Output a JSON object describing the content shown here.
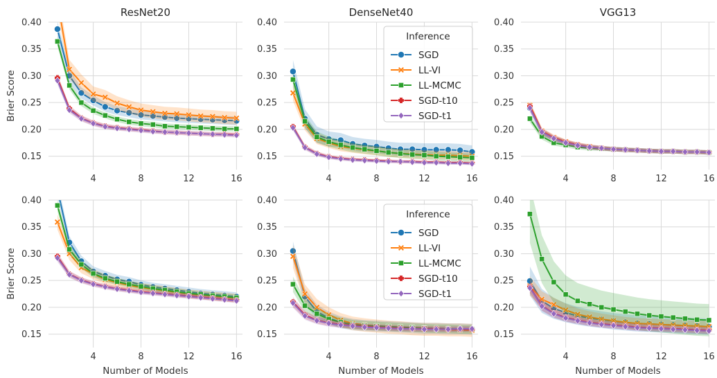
{
  "figure": {
    "column_titles": [
      "ResNet20",
      "DenseNet40",
      "VGG13"
    ],
    "ylabel": "Brier Score",
    "xlabel": "Number of Models",
    "legend_title": "Inference"
  },
  "series_styles": [
    {
      "name": "SGD",
      "color": "#1f77b4",
      "marker": "circle"
    },
    {
      "name": "LL-VI",
      "color": "#ff7f0e",
      "marker": "x"
    },
    {
      "name": "LL-MCMC",
      "color": "#2ca02c",
      "marker": "square"
    },
    {
      "name": "SGD-t10",
      "color": "#d62728",
      "marker": "plus"
    },
    {
      "name": "SGD-t1",
      "color": "#9467bd",
      "marker": "diamond"
    }
  ],
  "chart_data": [
    {
      "type": "line",
      "title": "ResNet20",
      "ylabel": "Brier Score",
      "xlabel": "",
      "xlim": [
        0.25,
        16.5
      ],
      "ylim": [
        0.125,
        0.4
      ],
      "xticks": [
        "4",
        "8",
        "12",
        "16"
      ],
      "yticks": [
        "0.15",
        "0.20",
        "0.25",
        "0.30",
        "0.35",
        "0.40"
      ],
      "grid": true,
      "legend": null,
      "x": [
        1,
        2,
        3,
        4,
        5,
        6,
        7,
        8,
        9,
        10,
        11,
        12,
        13,
        14,
        15,
        16
      ],
      "series": [
        {
          "name": "SGD",
          "values": [
            0.387,
            0.3,
            0.268,
            0.254,
            0.242,
            0.235,
            0.231,
            0.227,
            0.225,
            0.223,
            0.221,
            0.22,
            0.219,
            0.218,
            0.217,
            0.216
          ],
          "band": 0.008
        },
        {
          "name": "LL-VI",
          "values": [
            0.44,
            0.312,
            0.287,
            0.266,
            0.26,
            0.249,
            0.242,
            0.236,
            0.233,
            0.23,
            0.229,
            0.227,
            0.225,
            0.224,
            0.222,
            0.221
          ],
          "band": 0.012
        },
        {
          "name": "LL-MCMC",
          "values": [
            0.364,
            0.282,
            0.25,
            0.235,
            0.226,
            0.219,
            0.214,
            0.211,
            0.209,
            0.206,
            0.205,
            0.204,
            0.203,
            0.202,
            0.201,
            0.201
          ],
          "band": 0.005
        },
        {
          "name": "SGD-t10",
          "values": [
            0.296,
            0.239,
            0.221,
            0.212,
            0.206,
            0.203,
            0.201,
            0.199,
            0.197,
            0.195,
            0.194,
            0.193,
            0.192,
            0.191,
            0.191,
            0.19
          ],
          "band": 0.004
        },
        {
          "name": "SGD-t1",
          "values": [
            0.291,
            0.236,
            0.22,
            0.211,
            0.205,
            0.202,
            0.2,
            0.198,
            0.196,
            0.195,
            0.194,
            0.193,
            0.192,
            0.191,
            0.19,
            0.189
          ],
          "band": 0.004
        }
      ]
    },
    {
      "type": "line",
      "title": "DenseNet40",
      "ylabel": "",
      "xlabel": "",
      "xlim": [
        0.25,
        16.5
      ],
      "ylim": [
        0.125,
        0.4
      ],
      "xticks": [
        "4",
        "8",
        "12",
        "16"
      ],
      "yticks": [
        "0.15",
        "0.20",
        "0.25",
        "0.30",
        "0.35",
        "0.40"
      ],
      "grid": true,
      "legend": "top-right",
      "x": [
        1,
        2,
        3,
        4,
        5,
        6,
        7,
        8,
        9,
        10,
        11,
        12,
        13,
        14,
        15,
        16
      ],
      "series": [
        {
          "name": "SGD",
          "values": [
            0.308,
            0.22,
            0.19,
            0.182,
            0.18,
            0.173,
            0.17,
            0.168,
            0.165,
            0.163,
            0.163,
            0.162,
            0.162,
            0.162,
            0.161,
            0.158
          ],
          "band": 0.012
        },
        {
          "name": "LL-VI",
          "values": [
            0.268,
            0.21,
            0.183,
            0.175,
            0.168,
            0.165,
            0.162,
            0.16,
            0.157,
            0.155,
            0.154,
            0.153,
            0.152,
            0.152,
            0.151,
            0.15
          ],
          "band": 0.008
        },
        {
          "name": "LL-MCMC",
          "values": [
            0.293,
            0.215,
            0.186,
            0.177,
            0.171,
            0.166,
            0.163,
            0.16,
            0.157,
            0.155,
            0.153,
            0.152,
            0.15,
            0.149,
            0.148,
            0.147
          ],
          "band": 0.008
        },
        {
          "name": "SGD-t10",
          "values": [
            0.205,
            0.167,
            0.155,
            0.149,
            0.146,
            0.144,
            0.143,
            0.142,
            0.141,
            0.14,
            0.14,
            0.139,
            0.139,
            0.138,
            0.138,
            0.137
          ],
          "band": 0.003
        },
        {
          "name": "SGD-t1",
          "values": [
            0.203,
            0.166,
            0.154,
            0.148,
            0.145,
            0.143,
            0.142,
            0.141,
            0.14,
            0.14,
            0.139,
            0.138,
            0.138,
            0.137,
            0.137,
            0.136
          ],
          "band": 0.003
        }
      ]
    },
    {
      "type": "line",
      "title": "VGG13",
      "ylabel": "",
      "xlabel": "",
      "xlim": [
        0.25,
        16.5
      ],
      "ylim": [
        0.125,
        0.4
      ],
      "xticks": [
        "4",
        "8",
        "12",
        "16"
      ],
      "yticks": [
        "0.15",
        "0.20",
        "0.25",
        "0.30",
        "0.35",
        "0.40"
      ],
      "grid": true,
      "legend": null,
      "x": [
        1,
        2,
        3,
        4,
        5,
        6,
        7,
        8,
        9,
        10,
        11,
        12,
        13,
        14,
        15,
        16
      ],
      "series": [
        {
          "name": "SGD",
          "values": [
            0.24,
            0.195,
            0.183,
            0.176,
            0.17,
            0.167,
            0.165,
            0.163,
            0.162,
            0.161,
            0.16,
            0.159,
            0.159,
            0.158,
            0.158,
            0.157
          ],
          "band": 0.004
        },
        {
          "name": "LL-VI",
          "values": [
            0.245,
            0.197,
            0.185,
            0.177,
            0.171,
            0.168,
            0.165,
            0.163,
            0.162,
            0.161,
            0.16,
            0.159,
            0.159,
            0.158,
            0.158,
            0.157
          ],
          "band": 0.004
        },
        {
          "name": "LL-MCMC",
          "values": [
            0.22,
            0.187,
            0.175,
            0.171,
            0.167,
            0.165,
            0.164,
            0.163,
            0.162,
            0.161,
            0.16,
            0.159,
            0.159,
            0.158,
            0.158,
            0.157
          ],
          "band": 0.004
        },
        {
          "name": "SGD-t10",
          "values": [
            0.243,
            0.196,
            0.184,
            0.176,
            0.171,
            0.167,
            0.165,
            0.163,
            0.162,
            0.161,
            0.16,
            0.159,
            0.159,
            0.158,
            0.158,
            0.157
          ],
          "band": 0.004
        },
        {
          "name": "SGD-t1",
          "values": [
            0.24,
            0.195,
            0.183,
            0.175,
            0.17,
            0.167,
            0.165,
            0.163,
            0.162,
            0.161,
            0.16,
            0.159,
            0.159,
            0.158,
            0.158,
            0.157
          ],
          "band": 0.004
        }
      ]
    },
    {
      "type": "line",
      "title": "",
      "ylabel": "Brier Score",
      "xlabel": "Number of Models",
      "xlim": [
        0.25,
        16.5
      ],
      "ylim": [
        0.125,
        0.4
      ],
      "xticks": [
        "4",
        "8",
        "12",
        "16"
      ],
      "yticks": [
        "0.15",
        "0.20",
        "0.25",
        "0.30",
        "0.35",
        "0.40"
      ],
      "grid": true,
      "legend": null,
      "x": [
        1,
        2,
        3,
        4,
        5,
        6,
        7,
        8,
        9,
        10,
        11,
        12,
        13,
        14,
        15,
        16
      ],
      "series": [
        {
          "name": "SGD",
          "values": [
            0.42,
            0.321,
            0.286,
            0.267,
            0.259,
            0.252,
            0.248,
            0.242,
            0.238,
            0.235,
            0.232,
            0.229,
            0.226,
            0.224,
            0.222,
            0.22
          ],
          "band": 0.008
        },
        {
          "name": "LL-VI",
          "values": [
            0.359,
            0.3,
            0.274,
            0.262,
            0.252,
            0.246,
            0.241,
            0.237,
            0.234,
            0.231,
            0.228,
            0.225,
            0.223,
            0.221,
            0.219,
            0.217
          ],
          "band": 0.008
        },
        {
          "name": "LL-MCMC",
          "values": [
            0.39,
            0.308,
            0.28,
            0.263,
            0.254,
            0.248,
            0.243,
            0.239,
            0.235,
            0.232,
            0.229,
            0.226,
            0.224,
            0.222,
            0.22,
            0.218
          ],
          "band": 0.006
        },
        {
          "name": "SGD-t10",
          "values": [
            0.295,
            0.262,
            0.251,
            0.244,
            0.239,
            0.235,
            0.232,
            0.229,
            0.227,
            0.225,
            0.223,
            0.221,
            0.219,
            0.217,
            0.215,
            0.213
          ],
          "band": 0.004
        },
        {
          "name": "SGD-t1",
          "values": [
            0.292,
            0.261,
            0.25,
            0.243,
            0.238,
            0.234,
            0.231,
            0.228,
            0.226,
            0.224,
            0.222,
            0.22,
            0.218,
            0.216,
            0.214,
            0.212
          ],
          "band": 0.004
        }
      ]
    },
    {
      "type": "line",
      "title": "",
      "ylabel": "",
      "xlabel": "Number of Models",
      "xlim": [
        0.25,
        16.5
      ],
      "ylim": [
        0.125,
        0.4
      ],
      "xticks": [
        "4",
        "8",
        "12",
        "16"
      ],
      "yticks": [
        "0.15",
        "0.20",
        "0.25",
        "0.30",
        "0.35",
        "0.40"
      ],
      "grid": true,
      "legend": "top-right",
      "x": [
        1,
        2,
        3,
        4,
        5,
        6,
        7,
        8,
        9,
        10,
        11,
        12,
        13,
        14,
        15,
        16
      ],
      "series": [
        {
          "name": "SGD",
          "values": [
            0.305,
            0.22,
            0.192,
            0.18,
            0.172,
            0.168,
            0.166,
            0.165,
            0.164,
            0.163,
            0.162,
            0.161,
            0.161,
            0.16,
            0.16,
            0.159
          ],
          "band": 0.01
        },
        {
          "name": "LL-VI",
          "values": [
            0.295,
            0.225,
            0.2,
            0.186,
            0.176,
            0.17,
            0.167,
            0.165,
            0.163,
            0.162,
            0.16,
            0.159,
            0.159,
            0.158,
            0.158,
            0.157
          ],
          "band": 0.012
        },
        {
          "name": "LL-MCMC",
          "values": [
            0.243,
            0.203,
            0.188,
            0.178,
            0.172,
            0.168,
            0.166,
            0.165,
            0.164,
            0.163,
            0.162,
            0.161,
            0.16,
            0.16,
            0.159,
            0.159
          ],
          "band": 0.008
        },
        {
          "name": "SGD-t10",
          "values": [
            0.21,
            0.186,
            0.176,
            0.171,
            0.168,
            0.166,
            0.164,
            0.163,
            0.162,
            0.161,
            0.16,
            0.16,
            0.16,
            0.159,
            0.159,
            0.159
          ],
          "band": 0.005
        },
        {
          "name": "SGD-t1",
          "values": [
            0.208,
            0.184,
            0.175,
            0.17,
            0.167,
            0.165,
            0.163,
            0.162,
            0.161,
            0.16,
            0.16,
            0.159,
            0.159,
            0.159,
            0.16,
            0.16
          ],
          "band": 0.005
        }
      ]
    },
    {
      "type": "line",
      "title": "",
      "ylabel": "",
      "xlabel": "Number of Models",
      "xlim": [
        0.25,
        16.5
      ],
      "ylim": [
        0.125,
        0.4
      ],
      "xticks": [
        "4",
        "8",
        "12",
        "16"
      ],
      "yticks": [
        "0.15",
        "0.20",
        "0.25",
        "0.30",
        "0.35",
        "0.40"
      ],
      "grid": true,
      "legend": null,
      "x": [
        1,
        2,
        3,
        4,
        5,
        6,
        7,
        8,
        9,
        10,
        11,
        12,
        13,
        14,
        15,
        16
      ],
      "series": [
        {
          "name": "SGD",
          "values": [
            0.249,
            0.212,
            0.198,
            0.19,
            0.184,
            0.18,
            0.177,
            0.174,
            0.172,
            0.17,
            0.169,
            0.168,
            0.167,
            0.166,
            0.165,
            0.164
          ],
          "band": 0.015
        },
        {
          "name": "LL-VI",
          "values": [
            0.24,
            0.215,
            0.205,
            0.195,
            0.187,
            0.182,
            0.178,
            0.175,
            0.172,
            0.17,
            0.169,
            0.168,
            0.167,
            0.166,
            0.165,
            0.164
          ],
          "band": 0.01
        },
        {
          "name": "LL-MCMC",
          "values": [
            0.374,
            0.29,
            0.247,
            0.224,
            0.212,
            0.206,
            0.2,
            0.196,
            0.192,
            0.188,
            0.185,
            0.183,
            0.181,
            0.179,
            0.177,
            0.176
          ],
          "band": 0.03
        },
        {
          "name": "SGD-t10",
          "values": [
            0.238,
            0.203,
            0.189,
            0.181,
            0.176,
            0.172,
            0.169,
            0.167,
            0.165,
            0.163,
            0.162,
            0.161,
            0.16,
            0.159,
            0.158,
            0.157
          ],
          "band": 0.006
        },
        {
          "name": "SGD-t1",
          "values": [
            0.236,
            0.202,
            0.188,
            0.18,
            0.175,
            0.171,
            0.168,
            0.166,
            0.164,
            0.162,
            0.161,
            0.16,
            0.159,
            0.158,
            0.157,
            0.156
          ],
          "band": 0.006
        }
      ]
    }
  ]
}
